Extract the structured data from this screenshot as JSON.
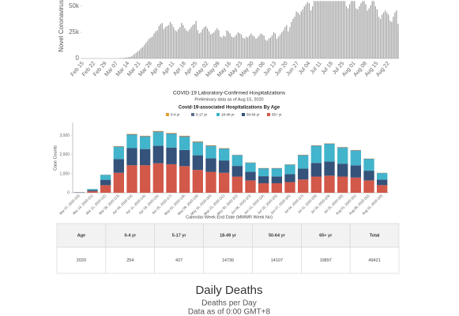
{
  "chart_data": [
    {
      "type": "bar",
      "ylabel": "Novel Coronavirus",
      "color": "#a6a6a6",
      "categories": [
        "Feb 15",
        null,
        null,
        null,
        null,
        null,
        null,
        "Feb 22",
        null,
        null,
        null,
        null,
        null,
        null,
        "Feb 29",
        null,
        null,
        null,
        null,
        null,
        null,
        "Mar 07",
        null,
        null,
        null,
        null,
        null,
        null,
        "Mar 14",
        null,
        null,
        null,
        null,
        null,
        null,
        "Mar 21",
        null,
        null,
        null,
        null,
        null,
        null,
        "Mar 28",
        null,
        null,
        null,
        null,
        null,
        null,
        "Apr 04",
        null,
        null,
        null,
        null,
        null,
        null,
        "Apr 11",
        null,
        null,
        null,
        null,
        null,
        null,
        "Apr 18",
        null,
        null,
        null,
        null,
        null,
        null,
        "Apr 25",
        null,
        null,
        null,
        null,
        null,
        null,
        "May 02",
        null,
        null,
        null,
        null,
        null,
        null,
        "May 09",
        null,
        null,
        null,
        null,
        null,
        null,
        "May 16",
        null,
        null,
        null,
        null,
        null,
        null,
        "May 23",
        null,
        null,
        null,
        null,
        null,
        null,
        "May 30",
        null,
        null,
        null,
        null,
        null,
        null,
        "Jun 06",
        null,
        null,
        null,
        null,
        null,
        null,
        "Jun 13",
        null,
        null,
        null,
        null,
        null,
        null,
        "Jun 20",
        null,
        null,
        null,
        null,
        null,
        null,
        "Jun 27",
        null,
        null,
        null,
        null,
        null,
        null,
        "Jul 04",
        null,
        null,
        null,
        null,
        null,
        null,
        "Jul 11",
        null,
        null,
        null,
        null,
        null,
        null,
        "Jul 18",
        null,
        null,
        null,
        null,
        null,
        null,
        "Jul 25",
        null,
        null,
        null,
        null,
        null,
        null,
        "Aug 01",
        null,
        null,
        null,
        null,
        null,
        null,
        "Aug 08",
        null,
        null,
        null,
        null,
        null,
        null,
        "Aug 15",
        null,
        null,
        null,
        null,
        null,
        null,
        "Aug 22",
        null,
        null,
        null,
        null,
        null,
        null
      ],
      "values": [
        0,
        0,
        0,
        0,
        0,
        0,
        0,
        0,
        0,
        0,
        0,
        0,
        0,
        0,
        0,
        0,
        0,
        0,
        0,
        0,
        100,
        100,
        200,
        300,
        400,
        500,
        700,
        900,
        1200,
        1500,
        2000,
        3000,
        4500,
        5500,
        7000,
        8000,
        10000,
        11000,
        13000,
        15000,
        17000,
        19000,
        20000,
        21000,
        24000,
        26000,
        27000,
        31000,
        33000,
        34000,
        28000,
        30000,
        31000,
        32000,
        35000,
        33000,
        30000,
        27000,
        26000,
        28000,
        30000,
        34000,
        32000,
        29000,
        27000,
        26000,
        28000,
        30000,
        32000,
        33000,
        36000,
        27000,
        24000,
        25000,
        28000,
        30000,
        31000,
        29000,
        26000,
        23000,
        24000,
        25000,
        27000,
        29000,
        27000,
        21000,
        20000,
        22000,
        21000,
        27000,
        26000,
        24000,
        21000,
        20000,
        21000,
        23000,
        25000,
        24000,
        23000,
        20000,
        19000,
        21000,
        20000,
        22000,
        24000,
        22000,
        21000,
        19000,
        20000,
        22000,
        24000,
        23000,
        22000,
        18000,
        17000,
        19000,
        20000,
        22000,
        25000,
        24000,
        19000,
        21000,
        23000,
        25000,
        27000,
        30000,
        32000,
        26000,
        30000,
        35000,
        38000,
        40000,
        45000,
        44000,
        42000,
        45000,
        47000,
        50000,
        52000,
        54000,
        53000,
        46000,
        50000,
        55000,
        55000,
        55000,
        55000,
        55000,
        55000,
        55000,
        55000,
        55000,
        55000,
        55000,
        55000,
        55000,
        55000,
        55000,
        55000,
        55000,
        55000,
        55000,
        55000,
        50000,
        48000,
        52000,
        55000,
        55000,
        55000,
        48000,
        47000,
        50000,
        53000,
        55000,
        55000,
        52000,
        46000,
        48000,
        51000,
        55000,
        55000,
        50000,
        47000,
        40000,
        38000,
        42000,
        44000,
        46000,
        44000,
        42000,
        36000,
        35000,
        40000,
        44000,
        46000,
        33000
      ],
      "ylim": [
        0,
        56000
      ],
      "yticks": [
        0,
        {
          "value": 25000,
          "label": "25k"
        },
        {
          "value": 50000,
          "label": "50k"
        }
      ],
      "grid": false
    },
    {
      "type": "stacked_bar",
      "title": "COVID-19 Laboratory-Confirmed Hospitalizations",
      "subtitle": "Preliminary data as of Aug 15, 2020",
      "heading": "Covid-19-associated Hospitalizations By Age",
      "xlabel": "Calendar Week End Date (MMWR Week No)",
      "ylabel": "Case Counts",
      "categories": [
        "Mar 07, 2020 (10)",
        "Mar 14, 2020 (11)",
        "Mar 21, 2020 (12)",
        "Mar 28, 2020 (13)",
        "Apr 04, 2020 (14)",
        "Apr 11, 2020 (15)",
        "Apr 18, 2020 (16)",
        "Apr 25, 2020 (17)",
        "May 02, 2020 (18)",
        "May 09, 2020 (19)",
        "May 16, 2020 (20)",
        "May 23, 2020 (21)",
        "May 30, 2020 (22)",
        "Jun 06, 2020 (23)",
        "Jun 13, 2020 (24)",
        "Jun 20, 2020 (25)",
        "Jun 27, 2020 (26)",
        "Jul 04, 2020 (27)",
        "Jul 11, 2020 (28)",
        "Jul 18, 2020 (29)",
        "Jul 25, 2020 (30)",
        "Aug 01, 2020 (31)",
        "Aug 08, 2020 (32)",
        "Aug 15, 2020 (33)"
      ],
      "series": [
        {
          "name": "0-4 yr",
          "color": "#e0a030",
          "values": [
            0,
            2,
            5,
            15,
            20,
            20,
            25,
            25,
            25,
            20,
            20,
            15,
            10,
            10,
            10,
            10,
            10,
            10,
            10,
            10,
            10,
            10,
            10,
            5
          ]
        },
        {
          "name": "5-17 yr",
          "color": "#5c6f8e",
          "values": [
            1,
            3,
            10,
            25,
            30,
            30,
            35,
            35,
            35,
            30,
            30,
            25,
            20,
            20,
            20,
            20,
            20,
            30,
            30,
            30,
            30,
            30,
            20,
            15
          ]
        },
        {
          "name": "18-49 yr",
          "color": "#42b4cb",
          "values": [
            8,
            55,
            255,
            640,
            700,
            650,
            720,
            710,
            690,
            680,
            640,
            610,
            560,
            470,
            400,
            410,
            490,
            690,
            890,
            920,
            830,
            770,
            610,
            340
          ]
        },
        {
          "name": "50-64 yr",
          "color": "#34527a",
          "values": [
            9,
            60,
            280,
            720,
            900,
            850,
            920,
            880,
            850,
            770,
            710,
            650,
            560,
            450,
            370,
            360,
            420,
            570,
            720,
            740,
            680,
            640,
            510,
            290
          ]
        },
        {
          "name": "65+ yr",
          "color": "#d2584a",
          "values": [
            12,
            80,
            400,
            1050,
            1450,
            1450,
            1550,
            1500,
            1400,
            1200,
            1100,
            1050,
            850,
            650,
            500,
            500,
            560,
            700,
            850,
            900,
            850,
            800,
            650,
            400
          ]
        }
      ],
      "ylim": [
        0,
        3700
      ],
      "yticks": [
        0,
        {
          "value": 1000,
          "label": "1,000"
        },
        {
          "value": 2000,
          "label": "2,000"
        },
        {
          "value": 3000,
          "label": "3,000"
        }
      ],
      "grid": false
    }
  ],
  "table": {
    "header": [
      "Age",
      "0-4 yr",
      "5-17 yr",
      "18-49 yr",
      "50-64 yr",
      "65+ yr",
      "Total"
    ],
    "rows": [
      [
        2020,
        254,
        427,
        14736,
        14107,
        19897,
        49421
      ]
    ]
  },
  "daily_deaths": {
    "title": "Daily Deaths",
    "subtitle": "Deaths per Day",
    "note": "Data as of 0:00 GMT+8"
  }
}
